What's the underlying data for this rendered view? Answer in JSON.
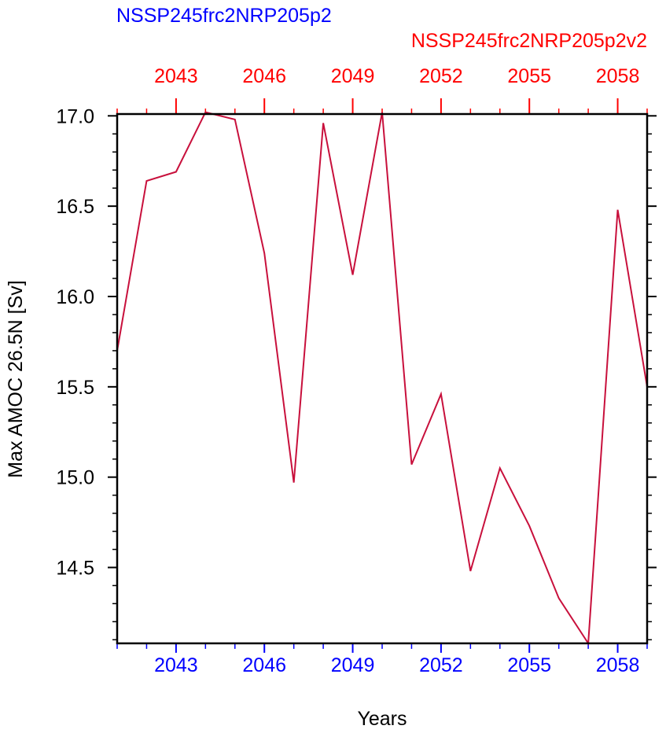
{
  "chart_data": {
    "type": "line",
    "title_left": "NSSP245frc2NRP205p2",
    "title_right": "NSSP245frc2NRP205p2v2",
    "title_left_color": "#0000ff",
    "title_right_color": "#ff0000",
    "x_label": "Years",
    "y_label": "Max AMOC 26.5N [Sv]",
    "x": [
      2041,
      2042,
      2043,
      2044,
      2045,
      2046,
      2047,
      2048,
      2049,
      2050,
      2051,
      2052,
      2053,
      2054,
      2055,
      2056,
      2057,
      2058,
      2059
    ],
    "series": [
      {
        "color": "#c8103c",
        "values": [
          15.7,
          16.64,
          16.69,
          17.02,
          16.98,
          16.24,
          14.97,
          16.96,
          16.12,
          17.02,
          15.07,
          15.46,
          14.48,
          15.05,
          14.73,
          14.33,
          14.08,
          16.48,
          15.5
        ]
      }
    ],
    "xlim": [
      2041,
      2059
    ],
    "ylim": [
      14.08,
      17.01
    ],
    "xticks": [
      2043,
      2046,
      2049,
      2052,
      2055,
      2058
    ],
    "xminorticks": [
      2041,
      2042,
      2044,
      2045,
      2047,
      2048,
      2050,
      2051,
      2053,
      2054,
      2056,
      2057,
      2059
    ],
    "yticks": [
      {
        "value": 14.5,
        "label": "14.5"
      },
      {
        "value": 15,
        "label": "15.0"
      },
      {
        "value": 15.5,
        "label": "15.5"
      },
      {
        "value": 16,
        "label": "16.0"
      },
      {
        "value": 16.5,
        "label": "16.5"
      },
      {
        "value": 17,
        "label": "17.0"
      }
    ],
    "yminorticks": [
      14.1,
      14.2,
      14.3,
      14.4,
      14.6,
      14.7,
      14.8,
      14.9,
      15.1,
      15.2,
      15.3,
      15.4,
      15.6,
      15.7,
      15.8,
      15.9,
      16.1,
      16.2,
      16.3,
      16.4,
      16.6,
      16.7,
      16.8,
      16.9
    ],
    "xtick_color": "#0000ff",
    "top_xtick_color": "#ff0000"
  }
}
